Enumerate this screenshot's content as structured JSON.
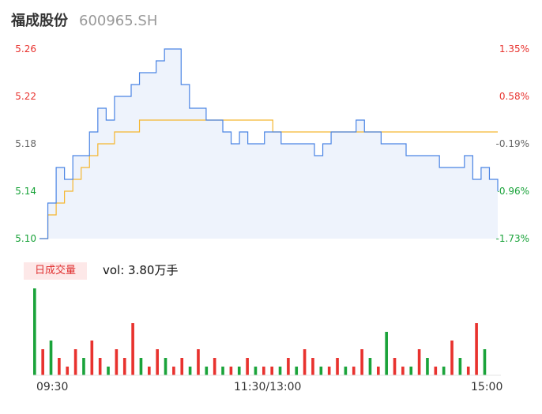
{
  "header": {
    "name": "福成股份",
    "code": "600965.SH"
  },
  "colors": {
    "up": "#e8322e",
    "down": "#1aa33a",
    "neutral": "#666666",
    "price_line": "#4a84e4",
    "avg_line": "#f5b630",
    "area_fill": "#eef3fc"
  },
  "price_axis": {
    "left_labels": [
      "5.26",
      "5.22",
      "5.18",
      "5.14",
      "5.10"
    ],
    "right_labels": [
      "1.35%",
      "0.58%",
      "-0.19%",
      "-0.96%",
      "-1.73%"
    ],
    "label_colors": [
      "#e8322e",
      "#e8322e",
      "#666666",
      "#1aa33a",
      "#1aa33a"
    ]
  },
  "volume": {
    "badge": "日成交量",
    "summary": "vol: 3.80万手"
  },
  "time_axis": {
    "labels": [
      "09:30",
      "11:30/13:00",
      "15:00"
    ]
  },
  "chart_data": {
    "type": "line",
    "title": "",
    "ylim": [
      5.1,
      5.26
    ],
    "prev_close": 5.19,
    "xlabels": [
      "09:30",
      "11:30/13:00",
      "15:00"
    ],
    "series": [
      {
        "values": [
          5.1,
          5.13,
          5.16,
          5.15,
          5.17,
          5.17,
          5.19,
          5.21,
          5.2,
          5.22,
          5.22,
          5.23,
          5.24,
          5.24,
          5.25,
          5.26,
          5.26,
          5.23,
          5.21,
          5.21,
          5.2,
          5.2,
          5.19,
          5.18,
          5.19,
          5.18,
          5.18,
          5.19,
          5.19,
          5.18,
          5.18,
          5.18,
          5.18,
          5.17,
          5.18,
          5.19,
          5.19,
          5.19,
          5.2,
          5.19,
          5.19,
          5.18,
          5.18,
          5.18,
          5.17,
          5.17,
          5.17,
          5.17,
          5.16,
          5.16,
          5.16,
          5.17,
          5.15,
          5.16,
          5.15,
          5.14
        ]
      },
      {
        "values": [
          5.1,
          5.12,
          5.13,
          5.14,
          5.15,
          5.16,
          5.17,
          5.18,
          5.18,
          5.19,
          5.19,
          5.19,
          5.2,
          5.2,
          5.2,
          5.2,
          5.2,
          5.2,
          5.2,
          5.2,
          5.2,
          5.2,
          5.2,
          5.2,
          5.2,
          5.2,
          5.2,
          5.2,
          5.19,
          5.19,
          5.19,
          5.19,
          5.19,
          5.19,
          5.19,
          5.19,
          5.19,
          5.19,
          5.19,
          5.19,
          5.19,
          5.19,
          5.19,
          5.19,
          5.19,
          5.19,
          5.19,
          5.19,
          5.19,
          5.19,
          5.19,
          5.19,
          5.19,
          5.19,
          5.19,
          5.19
        ]
      }
    ],
    "volume_values": [
      10,
      3,
      4,
      2,
      1,
      3,
      2,
      4,
      2,
      1,
      3,
      2,
      6,
      2,
      1,
      3,
      2,
      1,
      2,
      1,
      3,
      1,
      2,
      1,
      1,
      1,
      2,
      1,
      1,
      1,
      1,
      2,
      1,
      3,
      2,
      1,
      1,
      2,
      1,
      1,
      3,
      2,
      1,
      5,
      2,
      1,
      1,
      3,
      2,
      1,
      1,
      4,
      2,
      1,
      6,
      3
    ],
    "volume_up": [
      false,
      true,
      false,
      true,
      true,
      true,
      false,
      true,
      true,
      false,
      true,
      true,
      true,
      false,
      true,
      true,
      false,
      true,
      true,
      false,
      true,
      false,
      true,
      false,
      true,
      false,
      true,
      false,
      true,
      true,
      false,
      true,
      false,
      true,
      true,
      false,
      true,
      true,
      false,
      true,
      true,
      false,
      true,
      false,
      true,
      true,
      false,
      true,
      false,
      true,
      false,
      true,
      false,
      true,
      true,
      false
    ]
  }
}
